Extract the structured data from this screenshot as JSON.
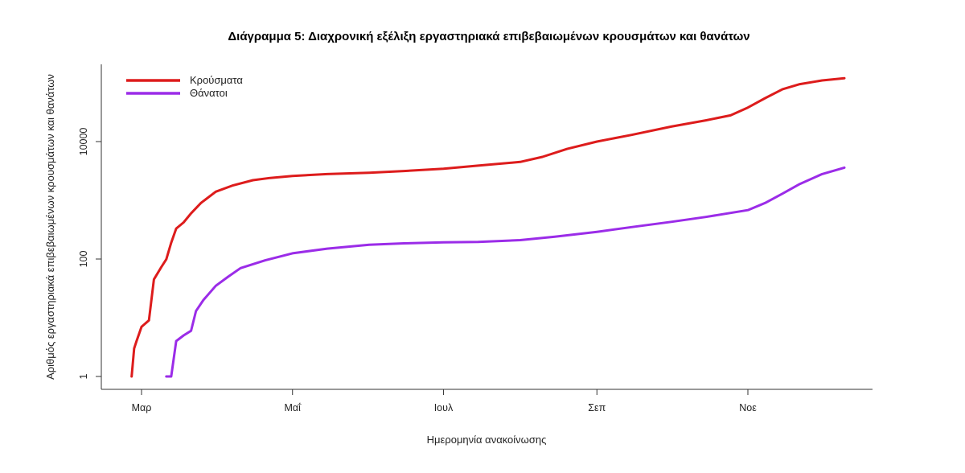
{
  "chart_data": {
    "type": "line",
    "title": "Διάγραμμα 5: Διαχρονική εξέλιξη εργαστηριακά επιβεβαιωμένων κρουσμάτων και θανάτων",
    "xlabel": "Ημερομηνία ανακοίνωσης",
    "ylabel": "Αριθμός εργαστηριακά επιβεβαιωμένων κρουσμάτων και θανάτων",
    "yscale": "log",
    "ylim": [
      1,
      200000
    ],
    "yticks": [
      {
        "value": 1,
        "label": "1"
      },
      {
        "value": 100,
        "label": "100"
      },
      {
        "value": 10000,
        "label": "10000"
      }
    ],
    "xlim": [
      "2020-02-20",
      "2020-12-15"
    ],
    "xticks": [
      {
        "value": "2020-03-01",
        "label": "Μαρ"
      },
      {
        "value": "2020-05-01",
        "label": "Μαΐ"
      },
      {
        "value": "2020-07-01",
        "label": "Ιουλ"
      },
      {
        "value": "2020-09-01",
        "label": "Σεπ"
      },
      {
        "value": "2020-11-01",
        "label": "Νοε"
      }
    ],
    "grid": false,
    "legend_position": "top-left",
    "series": [
      {
        "name": "Κρούσματα",
        "color": "#dd1c1c",
        "points": [
          [
            "2020-02-26",
            1
          ],
          [
            "2020-02-27",
            3
          ],
          [
            "2020-02-28",
            4
          ],
          [
            "2020-03-01",
            7
          ],
          [
            "2020-03-04",
            9
          ],
          [
            "2020-03-06",
            45
          ],
          [
            "2020-03-09",
            73
          ],
          [
            "2020-03-11",
            99
          ],
          [
            "2020-03-13",
            190
          ],
          [
            "2020-03-15",
            330
          ],
          [
            "2020-03-18",
            420
          ],
          [
            "2020-03-21",
            600
          ],
          [
            "2020-03-25",
            900
          ],
          [
            "2020-03-31",
            1400
          ],
          [
            "2020-04-07",
            1800
          ],
          [
            "2020-04-15",
            2200
          ],
          [
            "2020-04-22",
            2400
          ],
          [
            "2020-05-01",
            2600
          ],
          [
            "2020-05-15",
            2800
          ],
          [
            "2020-06-01",
            2950
          ],
          [
            "2020-06-15",
            3150
          ],
          [
            "2020-07-01",
            3450
          ],
          [
            "2020-07-15",
            3900
          ],
          [
            "2020-08-01",
            4500
          ],
          [
            "2020-08-10",
            5500
          ],
          [
            "2020-08-20",
            7500
          ],
          [
            "2020-09-01",
            10000
          ],
          [
            "2020-09-15",
            13000
          ],
          [
            "2020-10-01",
            18000
          ],
          [
            "2020-10-15",
            23000
          ],
          [
            "2020-10-25",
            28000
          ],
          [
            "2020-11-01",
            38000
          ],
          [
            "2020-11-08",
            55000
          ],
          [
            "2020-11-15",
            78000
          ],
          [
            "2020-11-22",
            95000
          ],
          [
            "2020-12-01",
            110000
          ],
          [
            "2020-12-10",
            120000
          ]
        ]
      },
      {
        "name": "Θάνατοι",
        "color": "#9b2ce8",
        "points": [
          [
            "2020-03-11",
            1
          ],
          [
            "2020-03-13",
            1
          ],
          [
            "2020-03-15",
            4
          ],
          [
            "2020-03-18",
            5
          ],
          [
            "2020-03-21",
            6
          ],
          [
            "2020-03-23",
            13
          ],
          [
            "2020-03-26",
            20
          ],
          [
            "2020-03-31",
            35
          ],
          [
            "2020-04-05",
            50
          ],
          [
            "2020-04-10",
            70
          ],
          [
            "2020-04-20",
            95
          ],
          [
            "2020-05-01",
            125
          ],
          [
            "2020-05-15",
            150
          ],
          [
            "2020-06-01",
            175
          ],
          [
            "2020-06-15",
            185
          ],
          [
            "2020-07-01",
            192
          ],
          [
            "2020-07-15",
            195
          ],
          [
            "2020-08-01",
            210
          ],
          [
            "2020-08-15",
            240
          ],
          [
            "2020-09-01",
            290
          ],
          [
            "2020-09-15",
            350
          ],
          [
            "2020-10-01",
            430
          ],
          [
            "2020-10-15",
            520
          ],
          [
            "2020-11-01",
            680
          ],
          [
            "2020-11-08",
            900
          ],
          [
            "2020-11-15",
            1300
          ],
          [
            "2020-11-22",
            1900
          ],
          [
            "2020-12-01",
            2800
          ],
          [
            "2020-12-10",
            3600
          ]
        ]
      }
    ]
  }
}
